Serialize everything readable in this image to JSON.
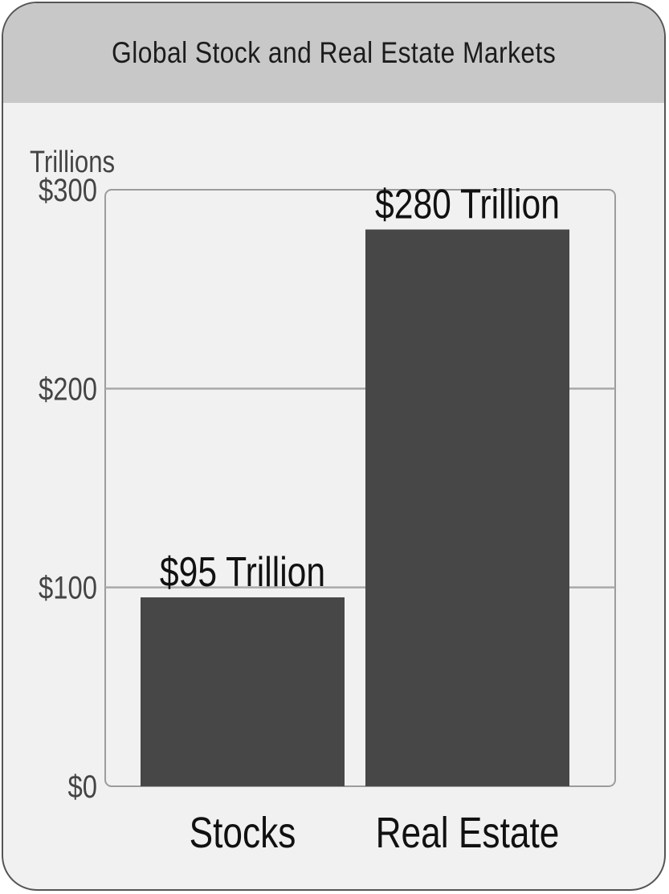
{
  "chart_data": {
    "type": "bar",
    "title": "Global Stock and Real Estate Markets",
    "ylabel": "Trillions",
    "xlabel": "",
    "categories": [
      "Stocks",
      "Real Estate"
    ],
    "values": [
      95,
      280
    ],
    "data_labels": [
      "$95 Trillion",
      "$280 Trillion"
    ],
    "yticks": [
      0,
      100,
      200,
      300
    ],
    "ytick_labels": [
      "$0",
      "$100",
      "$200",
      "$300"
    ],
    "ylim": [
      0,
      300
    ],
    "grid": true,
    "legend": "none",
    "colors": {
      "bar": "#474747",
      "header": "#c8c8c8",
      "background": "#f1f1f1",
      "gridline": "#a9a9a9"
    }
  }
}
